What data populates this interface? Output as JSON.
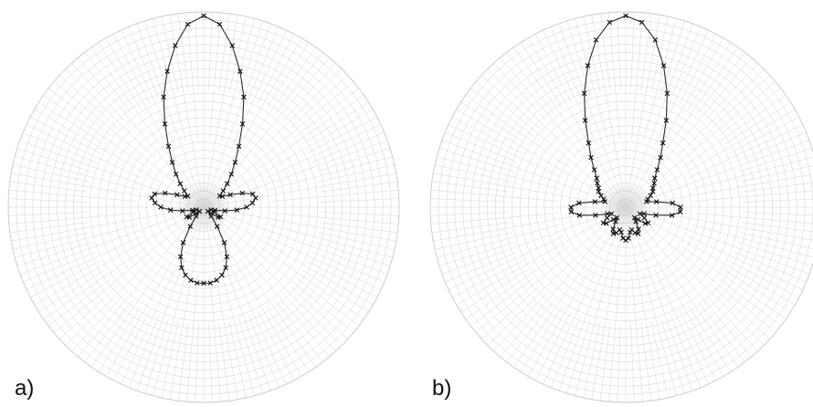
{
  "colors": {
    "grid": "#c9c9c9",
    "trace": "#2a2a2a",
    "marker": "#111111",
    "center_shadow": "#9a9a9a"
  },
  "chart_data": [
    {
      "type": "polar",
      "panel_label": "a)",
      "grid": true,
      "title": "",
      "series": [
        {
          "points": [
            {
              "theta_deg": 0,
              "r": 0.98
            },
            {
              "theta_deg": 5,
              "r": 0.94
            },
            {
              "theta_deg": 10,
              "r": 0.84
            },
            {
              "theta_deg": 15,
              "r": 0.72
            },
            {
              "theta_deg": 20,
              "r": 0.6
            },
            {
              "theta_deg": 25,
              "r": 0.47
            },
            {
              "theta_deg": 30,
              "r": 0.36
            },
            {
              "theta_deg": 35,
              "r": 0.28
            },
            {
              "theta_deg": 40,
              "r": 0.22
            },
            {
              "theta_deg": 45,
              "r": 0.17
            },
            {
              "theta_deg": 50,
              "r": 0.13
            },
            {
              "theta_deg": 55,
              "r": 0.1
            },
            {
              "theta_deg": 60,
              "r": 0.11
            },
            {
              "theta_deg": 65,
              "r": 0.15
            },
            {
              "theta_deg": 70,
              "r": 0.21
            },
            {
              "theta_deg": 75,
              "r": 0.26
            },
            {
              "theta_deg": 80,
              "r": 0.27
            },
            {
              "theta_deg": 85,
              "r": 0.25
            },
            {
              "theta_deg": 90,
              "r": 0.22
            },
            {
              "theta_deg": 95,
              "r": 0.17
            },
            {
              "theta_deg": 100,
              "r": 0.11
            },
            {
              "theta_deg": 105,
              "r": 0.06
            },
            {
              "theta_deg": 110,
              "r": 0.04
            },
            {
              "theta_deg": 115,
              "r": 0.06
            },
            {
              "theta_deg": 120,
              "r": 0.1
            },
            {
              "theta_deg": 125,
              "r": 0.09
            },
            {
              "theta_deg": 130,
              "r": 0.05
            },
            {
              "theta_deg": 135,
              "r": 0.03
            },
            {
              "theta_deg": 140,
              "r": 0.06
            },
            {
              "theta_deg": 145,
              "r": 0.12
            },
            {
              "theta_deg": 150,
              "r": 0.21
            },
            {
              "theta_deg": 155,
              "r": 0.28
            },
            {
              "theta_deg": 160,
              "r": 0.33
            },
            {
              "theta_deg": 165,
              "r": 0.36
            },
            {
              "theta_deg": 170,
              "r": 0.38
            },
            {
              "theta_deg": 175,
              "r": 0.39
            },
            {
              "theta_deg": 180,
              "r": 0.39
            },
            {
              "theta_deg": 185,
              "r": 0.39
            },
            {
              "theta_deg": 190,
              "r": 0.38
            },
            {
              "theta_deg": 195,
              "r": 0.36
            },
            {
              "theta_deg": 200,
              "r": 0.33
            },
            {
              "theta_deg": 205,
              "r": 0.28
            },
            {
              "theta_deg": 210,
              "r": 0.21
            },
            {
              "theta_deg": 215,
              "r": 0.12
            },
            {
              "theta_deg": 220,
              "r": 0.06
            },
            {
              "theta_deg": 225,
              "r": 0.03
            },
            {
              "theta_deg": 230,
              "r": 0.05
            },
            {
              "theta_deg": 235,
              "r": 0.09
            },
            {
              "theta_deg": 240,
              "r": 0.1
            },
            {
              "theta_deg": 245,
              "r": 0.06
            },
            {
              "theta_deg": 250,
              "r": 0.04
            },
            {
              "theta_deg": 255,
              "r": 0.06
            },
            {
              "theta_deg": 260,
              "r": 0.11
            },
            {
              "theta_deg": 265,
              "r": 0.17
            },
            {
              "theta_deg": 270,
              "r": 0.22
            },
            {
              "theta_deg": 275,
              "r": 0.25
            },
            {
              "theta_deg": 280,
              "r": 0.27
            },
            {
              "theta_deg": 285,
              "r": 0.26
            },
            {
              "theta_deg": 290,
              "r": 0.21
            },
            {
              "theta_deg": 295,
              "r": 0.15
            },
            {
              "theta_deg": 300,
              "r": 0.11
            },
            {
              "theta_deg": 305,
              "r": 0.1
            },
            {
              "theta_deg": 310,
              "r": 0.13
            },
            {
              "theta_deg": 315,
              "r": 0.17
            },
            {
              "theta_deg": 320,
              "r": 0.22
            },
            {
              "theta_deg": 325,
              "r": 0.28
            },
            {
              "theta_deg": 330,
              "r": 0.36
            },
            {
              "theta_deg": 335,
              "r": 0.47
            },
            {
              "theta_deg": 340,
              "r": 0.6
            },
            {
              "theta_deg": 345,
              "r": 0.72
            },
            {
              "theta_deg": 350,
              "r": 0.84
            },
            {
              "theta_deg": 355,
              "r": 0.94
            }
          ]
        }
      ]
    },
    {
      "type": "polar",
      "panel_label": "b)",
      "grid": true,
      "title": "",
      "series": [
        {
          "points": [
            {
              "theta_deg": 0,
              "r": 0.98
            },
            {
              "theta_deg": 5,
              "r": 0.95
            },
            {
              "theta_deg": 10,
              "r": 0.87
            },
            {
              "theta_deg": 15,
              "r": 0.75
            },
            {
              "theta_deg": 20,
              "r": 0.62
            },
            {
              "theta_deg": 25,
              "r": 0.49
            },
            {
              "theta_deg": 30,
              "r": 0.38
            },
            {
              "theta_deg": 35,
              "r": 0.31
            },
            {
              "theta_deg": 40,
              "r": 0.25
            },
            {
              "theta_deg": 45,
              "r": 0.21
            },
            {
              "theta_deg": 50,
              "r": 0.19
            },
            {
              "theta_deg": 55,
              "r": 0.17
            },
            {
              "theta_deg": 60,
              "r": 0.16
            },
            {
              "theta_deg": 65,
              "r": 0.14
            },
            {
              "theta_deg": 70,
              "r": 0.12
            },
            {
              "theta_deg": 75,
              "r": 0.11
            },
            {
              "theta_deg": 80,
              "r": 0.16
            },
            {
              "theta_deg": 85,
              "r": 0.24
            },
            {
              "theta_deg": 90,
              "r": 0.28
            },
            {
              "theta_deg": 95,
              "r": 0.28
            },
            {
              "theta_deg": 100,
              "r": 0.24
            },
            {
              "theta_deg": 105,
              "r": 0.16
            },
            {
              "theta_deg": 110,
              "r": 0.1
            },
            {
              "theta_deg": 115,
              "r": 0.08
            },
            {
              "theta_deg": 120,
              "r": 0.11
            },
            {
              "theta_deg": 125,
              "r": 0.14
            },
            {
              "theta_deg": 130,
              "r": 0.13
            },
            {
              "theta_deg": 135,
              "r": 0.09
            },
            {
              "theta_deg": 140,
              "r": 0.07
            },
            {
              "theta_deg": 145,
              "r": 0.09
            },
            {
              "theta_deg": 150,
              "r": 0.13
            },
            {
              "theta_deg": 155,
              "r": 0.15
            },
            {
              "theta_deg": 160,
              "r": 0.14
            },
            {
              "theta_deg": 165,
              "r": 0.12
            },
            {
              "theta_deg": 170,
              "r": 0.13
            },
            {
              "theta_deg": 175,
              "r": 0.16
            },
            {
              "theta_deg": 180,
              "r": 0.17
            },
            {
              "theta_deg": 185,
              "r": 0.16
            },
            {
              "theta_deg": 190,
              "r": 0.13
            },
            {
              "theta_deg": 195,
              "r": 0.12
            },
            {
              "theta_deg": 200,
              "r": 0.14
            },
            {
              "theta_deg": 205,
              "r": 0.15
            },
            {
              "theta_deg": 210,
              "r": 0.13
            },
            {
              "theta_deg": 215,
              "r": 0.09
            },
            {
              "theta_deg": 220,
              "r": 0.07
            },
            {
              "theta_deg": 225,
              "r": 0.09
            },
            {
              "theta_deg": 230,
              "r": 0.13
            },
            {
              "theta_deg": 235,
              "r": 0.14
            },
            {
              "theta_deg": 240,
              "r": 0.11
            },
            {
              "theta_deg": 245,
              "r": 0.08
            },
            {
              "theta_deg": 250,
              "r": 0.1
            },
            {
              "theta_deg": 255,
              "r": 0.16
            },
            {
              "theta_deg": 260,
              "r": 0.24
            },
            {
              "theta_deg": 265,
              "r": 0.28
            },
            {
              "theta_deg": 270,
              "r": 0.28
            },
            {
              "theta_deg": 275,
              "r": 0.24
            },
            {
              "theta_deg": 280,
              "r": 0.16
            },
            {
              "theta_deg": 285,
              "r": 0.11
            },
            {
              "theta_deg": 290,
              "r": 0.12
            },
            {
              "theta_deg": 295,
              "r": 0.14
            },
            {
              "theta_deg": 300,
              "r": 0.16
            },
            {
              "theta_deg": 305,
              "r": 0.17
            },
            {
              "theta_deg": 310,
              "r": 0.19
            },
            {
              "theta_deg": 315,
              "r": 0.21
            },
            {
              "theta_deg": 320,
              "r": 0.25
            },
            {
              "theta_deg": 325,
              "r": 0.31
            },
            {
              "theta_deg": 330,
              "r": 0.38
            },
            {
              "theta_deg": 335,
              "r": 0.49
            },
            {
              "theta_deg": 340,
              "r": 0.62
            },
            {
              "theta_deg": 345,
              "r": 0.75
            },
            {
              "theta_deg": 350,
              "r": 0.87
            },
            {
              "theta_deg": 355,
              "r": 0.95
            }
          ]
        }
      ]
    }
  ]
}
